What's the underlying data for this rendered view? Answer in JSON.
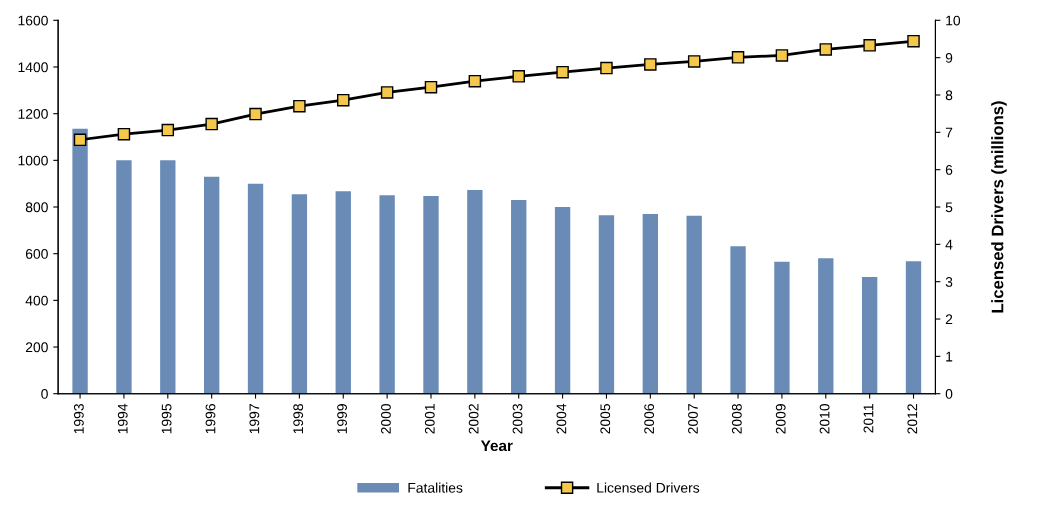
{
  "chart_data": {
    "type": "bar",
    "xlabel": "Year",
    "y2label": "Licensed Drivers (millions)",
    "categories": [
      "1993",
      "1994",
      "1995",
      "1996",
      "1997",
      "1998",
      "1999",
      "2000",
      "2001",
      "2002",
      "2003",
      "2004",
      "2005",
      "2006",
      "2007",
      "2008",
      "2009",
      "2010",
      "2011",
      "2012"
    ],
    "series": [
      {
        "name": "Fatalities",
        "color": "#6a8bb5",
        "values": [
          1135,
          1000,
          1000,
          930,
          900,
          855,
          868,
          850,
          847,
          873,
          830,
          800,
          765,
          770,
          763,
          632,
          565,
          580,
          500,
          568
        ]
      },
      {
        "name": "Licensed Drivers",
        "type": "line",
        "axis": "y2",
        "color": "#000000",
        "marker": "square",
        "values": [
          6.8,
          6.95,
          7.06,
          7.22,
          7.49,
          7.7,
          7.86,
          8.07,
          8.21,
          8.37,
          8.5,
          8.61,
          8.72,
          8.82,
          8.9,
          9.01,
          9.06,
          9.22,
          9.33,
          9.44
        ]
      }
    ],
    "ylim": [
      0,
      1600
    ],
    "yticks": [
      0,
      200,
      400,
      600,
      800,
      1000,
      1200,
      1400,
      1600
    ],
    "y2lim": [
      0,
      10
    ],
    "y2ticks": [
      0,
      1,
      2,
      3,
      4,
      5,
      6,
      7,
      8,
      9,
      10
    ],
    "grid": false,
    "legend": "bottom"
  }
}
